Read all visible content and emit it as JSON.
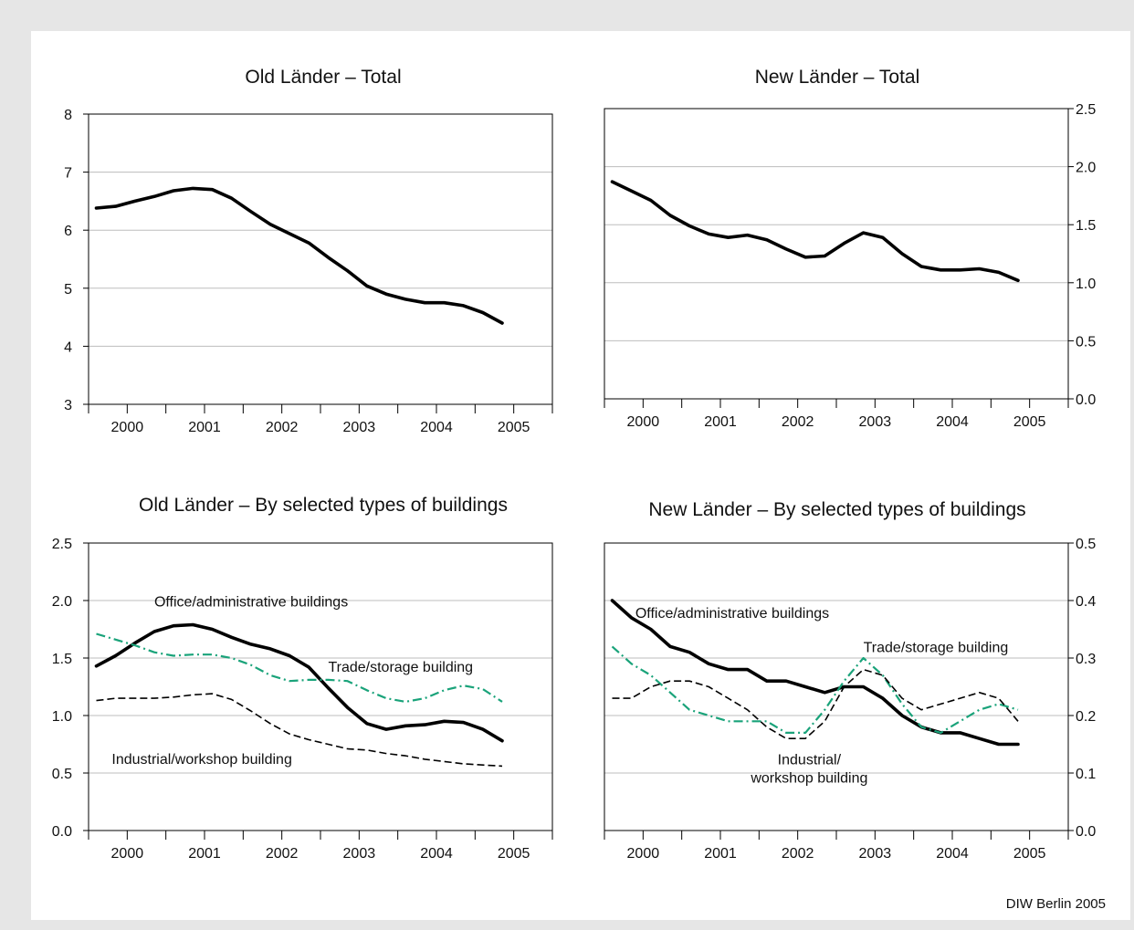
{
  "source_note": "DIW Berlin 2005",
  "colors": {
    "total": "#000000",
    "office": "#000000",
    "trade": "#1aa37a",
    "industrial": "#000000",
    "grid": "#bdbdbd"
  },
  "chart_data": [
    {
      "id": "old-total",
      "type": "line",
      "title": "Old Länder – Total",
      "xlabel": "",
      "ylabel": "",
      "x_ticks": [
        "2000",
        "2001",
        "2002",
        "2003",
        "2004",
        "2005"
      ],
      "xlim": [
        1999.5,
        2005.5
      ],
      "ylim": [
        3,
        8
      ],
      "y_ticks": [
        "3",
        "4",
        "5",
        "6",
        "7",
        "8"
      ],
      "y_axis_side": "left",
      "grid": true,
      "series": [
        {
          "key": "total",
          "x": [
            1999.6,
            1999.85,
            2000.1,
            2000.35,
            2000.6,
            2000.85,
            2001.1,
            2001.35,
            2001.6,
            2001.85,
            2002.1,
            2002.35,
            2002.6,
            2002.85,
            2003.1,
            2003.35,
            2003.6,
            2003.85,
            2004.1,
            2004.35,
            2004.6,
            2004.85
          ],
          "y": [
            6.38,
            6.41,
            6.5,
            6.58,
            6.68,
            6.72,
            6.7,
            6.55,
            6.32,
            6.1,
            5.94,
            5.78,
            5.53,
            5.3,
            5.04,
            4.9,
            4.81,
            4.75,
            4.75,
            4.7,
            4.58,
            4.4
          ]
        }
      ]
    },
    {
      "id": "new-total",
      "type": "line",
      "title": "New Länder – Total",
      "xlabel": "",
      "ylabel": "",
      "x_ticks": [
        "2000",
        "2001",
        "2002",
        "2003",
        "2004",
        "2005"
      ],
      "xlim": [
        1999.5,
        2005.5
      ],
      "ylim": [
        0,
        2.5
      ],
      "y_ticks": [
        "0.0",
        "0.5",
        "1.0",
        "1.5",
        "2.0",
        "2.5"
      ],
      "y_axis_side": "right",
      "grid": true,
      "series": [
        {
          "key": "total",
          "x": [
            1999.6,
            1999.85,
            2000.1,
            2000.35,
            2000.6,
            2000.85,
            2001.1,
            2001.35,
            2001.6,
            2001.85,
            2002.1,
            2002.35,
            2002.6,
            2002.85,
            2003.1,
            2003.35,
            2003.6,
            2003.85,
            2004.1,
            2004.35,
            2004.6,
            2004.85
          ],
          "y": [
            1.87,
            1.79,
            1.71,
            1.58,
            1.49,
            1.42,
            1.39,
            1.41,
            1.37,
            1.29,
            1.22,
            1.23,
            1.34,
            1.43,
            1.39,
            1.25,
            1.14,
            1.11,
            1.11,
            1.12,
            1.09,
            1.02
          ]
        }
      ]
    },
    {
      "id": "old-types",
      "type": "line",
      "title": "Old Länder – By selected types of buildings",
      "xlabel": "",
      "ylabel": "",
      "x_ticks": [
        "2000",
        "2001",
        "2002",
        "2003",
        "2004",
        "2005"
      ],
      "xlim": [
        1999.5,
        2005.5
      ],
      "ylim": [
        0,
        2.5
      ],
      "y_ticks": [
        "0.0",
        "0.5",
        "1.0",
        "1.5",
        "2.0",
        "2.5"
      ],
      "y_axis_side": "left",
      "grid": true,
      "series": [
        {
          "key": "office",
          "x": [
            1999.6,
            1999.85,
            2000.1,
            2000.35,
            2000.6,
            2000.85,
            2001.1,
            2001.35,
            2001.6,
            2001.85,
            2002.1,
            2002.35,
            2002.6,
            2002.85,
            2003.1,
            2003.35,
            2003.6,
            2003.85,
            2004.1,
            2004.35,
            2004.6,
            2004.85
          ],
          "y": [
            1.43,
            1.52,
            1.63,
            1.73,
            1.78,
            1.79,
            1.75,
            1.68,
            1.62,
            1.58,
            1.52,
            1.42,
            1.24,
            1.07,
            0.93,
            0.88,
            0.91,
            0.92,
            0.95,
            0.94,
            0.88,
            0.78
          ]
        },
        {
          "key": "trade",
          "x": [
            1999.6,
            1999.85,
            2000.1,
            2000.35,
            2000.6,
            2000.85,
            2001.1,
            2001.35,
            2001.6,
            2001.85,
            2002.1,
            2002.35,
            2002.6,
            2002.85,
            2003.1,
            2003.35,
            2003.6,
            2003.85,
            2004.1,
            2004.35,
            2004.6,
            2004.85
          ],
          "y": [
            1.71,
            1.66,
            1.61,
            1.55,
            1.52,
            1.53,
            1.53,
            1.5,
            1.44,
            1.35,
            1.3,
            1.31,
            1.31,
            1.3,
            1.22,
            1.15,
            1.12,
            1.15,
            1.22,
            1.26,
            1.23,
            1.12
          ]
        },
        {
          "key": "industrial",
          "x": [
            1999.6,
            1999.85,
            2000.1,
            2000.35,
            2000.6,
            2000.85,
            2001.1,
            2001.35,
            2001.6,
            2001.85,
            2002.1,
            2002.35,
            2002.6,
            2002.85,
            2003.1,
            2003.35,
            2003.6,
            2003.85,
            2004.1,
            2004.35,
            2004.6,
            2004.85
          ],
          "y": [
            1.13,
            1.15,
            1.15,
            1.15,
            1.16,
            1.18,
            1.19,
            1.14,
            1.04,
            0.93,
            0.84,
            0.79,
            0.75,
            0.71,
            0.7,
            0.67,
            0.65,
            0.62,
            0.6,
            0.58,
            0.57,
            0.56
          ]
        }
      ],
      "annotations": [
        {
          "key": "office",
          "lines": [
            "Office/administrative buildings"
          ],
          "x": 2000.35,
          "y": 1.95
        },
        {
          "key": "trade",
          "lines": [
            "Trade/storage building"
          ],
          "x": 2002.6,
          "y": 1.38
        },
        {
          "key": "industrial",
          "lines": [
            "Industrial/workshop building"
          ],
          "x": 1999.8,
          "y": 0.58
        }
      ]
    },
    {
      "id": "new-types",
      "type": "line",
      "title": "New Länder – By selected types of buildings",
      "xlabel": "",
      "ylabel": "",
      "x_ticks": [
        "2000",
        "2001",
        "2002",
        "2003",
        "2004",
        "2005"
      ],
      "xlim": [
        1999.5,
        2005.5
      ],
      "ylim": [
        0,
        0.5
      ],
      "y_ticks": [
        "0.0",
        "0.1",
        "0.2",
        "0.3",
        "0.4",
        "0.5"
      ],
      "y_axis_side": "right",
      "grid": true,
      "series": [
        {
          "key": "office",
          "x": [
            1999.6,
            1999.85,
            2000.1,
            2000.35,
            2000.6,
            2000.85,
            2001.1,
            2001.35,
            2001.6,
            2001.85,
            2002.1,
            2002.35,
            2002.6,
            2002.85,
            2003.1,
            2003.35,
            2003.6,
            2003.85,
            2004.1,
            2004.35,
            2004.6,
            2004.85
          ],
          "y": [
            0.4,
            0.37,
            0.35,
            0.32,
            0.31,
            0.29,
            0.28,
            0.28,
            0.26,
            0.26,
            0.25,
            0.24,
            0.25,
            0.25,
            0.23,
            0.2,
            0.18,
            0.17,
            0.17,
            0.16,
            0.15,
            0.15
          ]
        },
        {
          "key": "trade",
          "x": [
            1999.6,
            1999.85,
            2000.1,
            2000.35,
            2000.6,
            2000.85,
            2001.1,
            2001.35,
            2001.6,
            2001.85,
            2002.1,
            2002.35,
            2002.6,
            2002.85,
            2003.1,
            2003.35,
            2003.6,
            2003.85,
            2004.1,
            2004.35,
            2004.6,
            2004.85
          ],
          "y": [
            0.32,
            0.29,
            0.27,
            0.24,
            0.21,
            0.2,
            0.19,
            0.19,
            0.19,
            0.17,
            0.17,
            0.21,
            0.26,
            0.3,
            0.27,
            0.22,
            0.18,
            0.17,
            0.19,
            0.21,
            0.22,
            0.21
          ]
        },
        {
          "key": "industrial",
          "x": [
            1999.6,
            1999.85,
            2000.1,
            2000.35,
            2000.6,
            2000.85,
            2001.1,
            2001.35,
            2001.6,
            2001.85,
            2002.1,
            2002.35,
            2002.6,
            2002.85,
            2003.1,
            2003.35,
            2003.6,
            2003.85,
            2004.1,
            2004.35,
            2004.6,
            2004.85
          ],
          "y": [
            0.23,
            0.23,
            0.25,
            0.26,
            0.26,
            0.25,
            0.23,
            0.21,
            0.18,
            0.16,
            0.16,
            0.19,
            0.25,
            0.28,
            0.27,
            0.23,
            0.21,
            0.22,
            0.23,
            0.24,
            0.23,
            0.19
          ]
        }
      ],
      "annotations": [
        {
          "key": "office",
          "lines": [
            "Office/administrative buildings"
          ],
          "x": 1999.9,
          "y": 0.37
        },
        {
          "key": "trade",
          "lines": [
            "Trade/storage building"
          ],
          "x": 2002.85,
          "y": 0.31
        },
        {
          "key": "industrial",
          "lines": [
            "Industrial/",
            "workshop building"
          ],
          "x": 2002.15,
          "y": 0.115
        }
      ]
    }
  ]
}
